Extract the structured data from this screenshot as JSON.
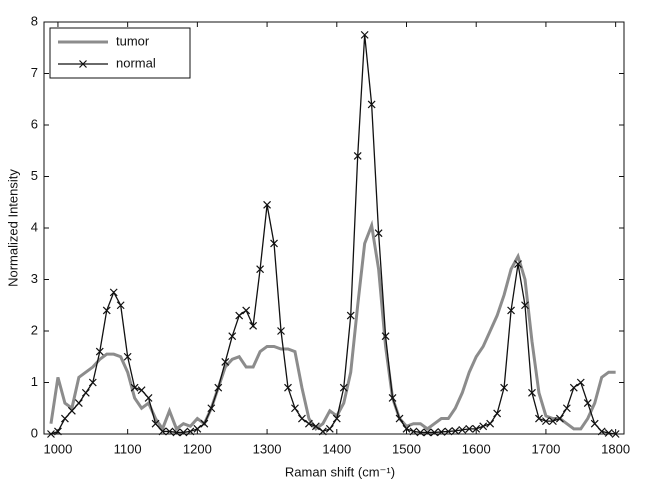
{
  "chart_data": {
    "type": "line",
    "xlabel": "Raman shift (cm⁻¹)",
    "ylabel": "Normalized Intensity",
    "x": [
      990,
      1000,
      1010,
      1020,
      1030,
      1040,
      1050,
      1060,
      1070,
      1080,
      1090,
      1100,
      1110,
      1120,
      1130,
      1140,
      1150,
      1160,
      1170,
      1180,
      1190,
      1200,
      1210,
      1220,
      1230,
      1240,
      1250,
      1260,
      1270,
      1280,
      1290,
      1300,
      1310,
      1320,
      1330,
      1340,
      1350,
      1360,
      1370,
      1380,
      1390,
      1400,
      1410,
      1420,
      1430,
      1440,
      1450,
      1460,
      1470,
      1480,
      1490,
      1500,
      1510,
      1520,
      1530,
      1540,
      1550,
      1560,
      1570,
      1580,
      1590,
      1600,
      1610,
      1620,
      1630,
      1640,
      1650,
      1660,
      1670,
      1680,
      1690,
      1700,
      1710,
      1720,
      1730,
      1740,
      1750,
      1760,
      1770,
      1780,
      1790,
      1800
    ],
    "series": [
      {
        "name": "tumor",
        "color": "#8c8c8c",
        "marker": "none",
        "values": [
          0.2,
          1.1,
          0.6,
          0.5,
          1.1,
          1.2,
          1.3,
          1.45,
          1.55,
          1.55,
          1.5,
          1.2,
          0.7,
          0.5,
          0.6,
          0.3,
          0.1,
          0.45,
          0.1,
          0.2,
          0.15,
          0.3,
          0.2,
          0.5,
          0.9,
          1.3,
          1.45,
          1.5,
          1.3,
          1.3,
          1.6,
          1.7,
          1.7,
          1.65,
          1.65,
          1.6,
          0.9,
          0.3,
          0.1,
          0.2,
          0.45,
          0.35,
          0.6,
          1.2,
          2.5,
          3.7,
          4.05,
          3.2,
          1.7,
          0.7,
          0.3,
          0.15,
          0.2,
          0.2,
          0.1,
          0.2,
          0.3,
          0.3,
          0.5,
          0.8,
          1.2,
          1.5,
          1.7,
          2.0,
          2.3,
          2.7,
          3.2,
          3.45,
          3.0,
          1.8,
          0.8,
          0.35,
          0.3,
          0.3,
          0.2,
          0.1,
          0.1,
          0.3,
          0.6,
          1.1,
          1.2,
          1.2
        ]
      },
      {
        "name": "normal",
        "color": "#111111",
        "marker": "x",
        "values": [
          0,
          0.05,
          0.3,
          0.45,
          0.6,
          0.8,
          1.0,
          1.6,
          2.4,
          2.75,
          2.5,
          1.5,
          0.9,
          0.85,
          0.7,
          0.2,
          0.05,
          0.05,
          0.03,
          0.03,
          0.05,
          0.1,
          0.2,
          0.5,
          0.9,
          1.4,
          1.9,
          2.3,
          2.4,
          2.1,
          3.2,
          4.45,
          3.7,
          2.0,
          0.9,
          0.5,
          0.3,
          0.2,
          0.15,
          0.05,
          0.1,
          0.3,
          0.9,
          2.3,
          5.4,
          7.75,
          6.4,
          3.9,
          1.9,
          0.7,
          0.3,
          0.1,
          0.05,
          0.03,
          0.03,
          0.03,
          0.04,
          0.05,
          0.06,
          0.08,
          0.1,
          0.1,
          0.15,
          0.2,
          0.4,
          0.9,
          2.4,
          3.3,
          2.5,
          0.8,
          0.3,
          0.25,
          0.25,
          0.3,
          0.5,
          0.9,
          1.0,
          0.6,
          0.2,
          0.05,
          0.02,
          0
        ]
      }
    ],
    "xlim": [
      980,
      1812
    ],
    "xticks": [
      1000,
      1100,
      1200,
      1300,
      1400,
      1500,
      1600,
      1700,
      1800
    ],
    "ylim": [
      0,
      8
    ],
    "yticks": [
      0,
      1,
      2,
      3,
      4,
      5,
      6,
      7,
      8
    ],
    "legend": "upper left",
    "grid": false
  }
}
